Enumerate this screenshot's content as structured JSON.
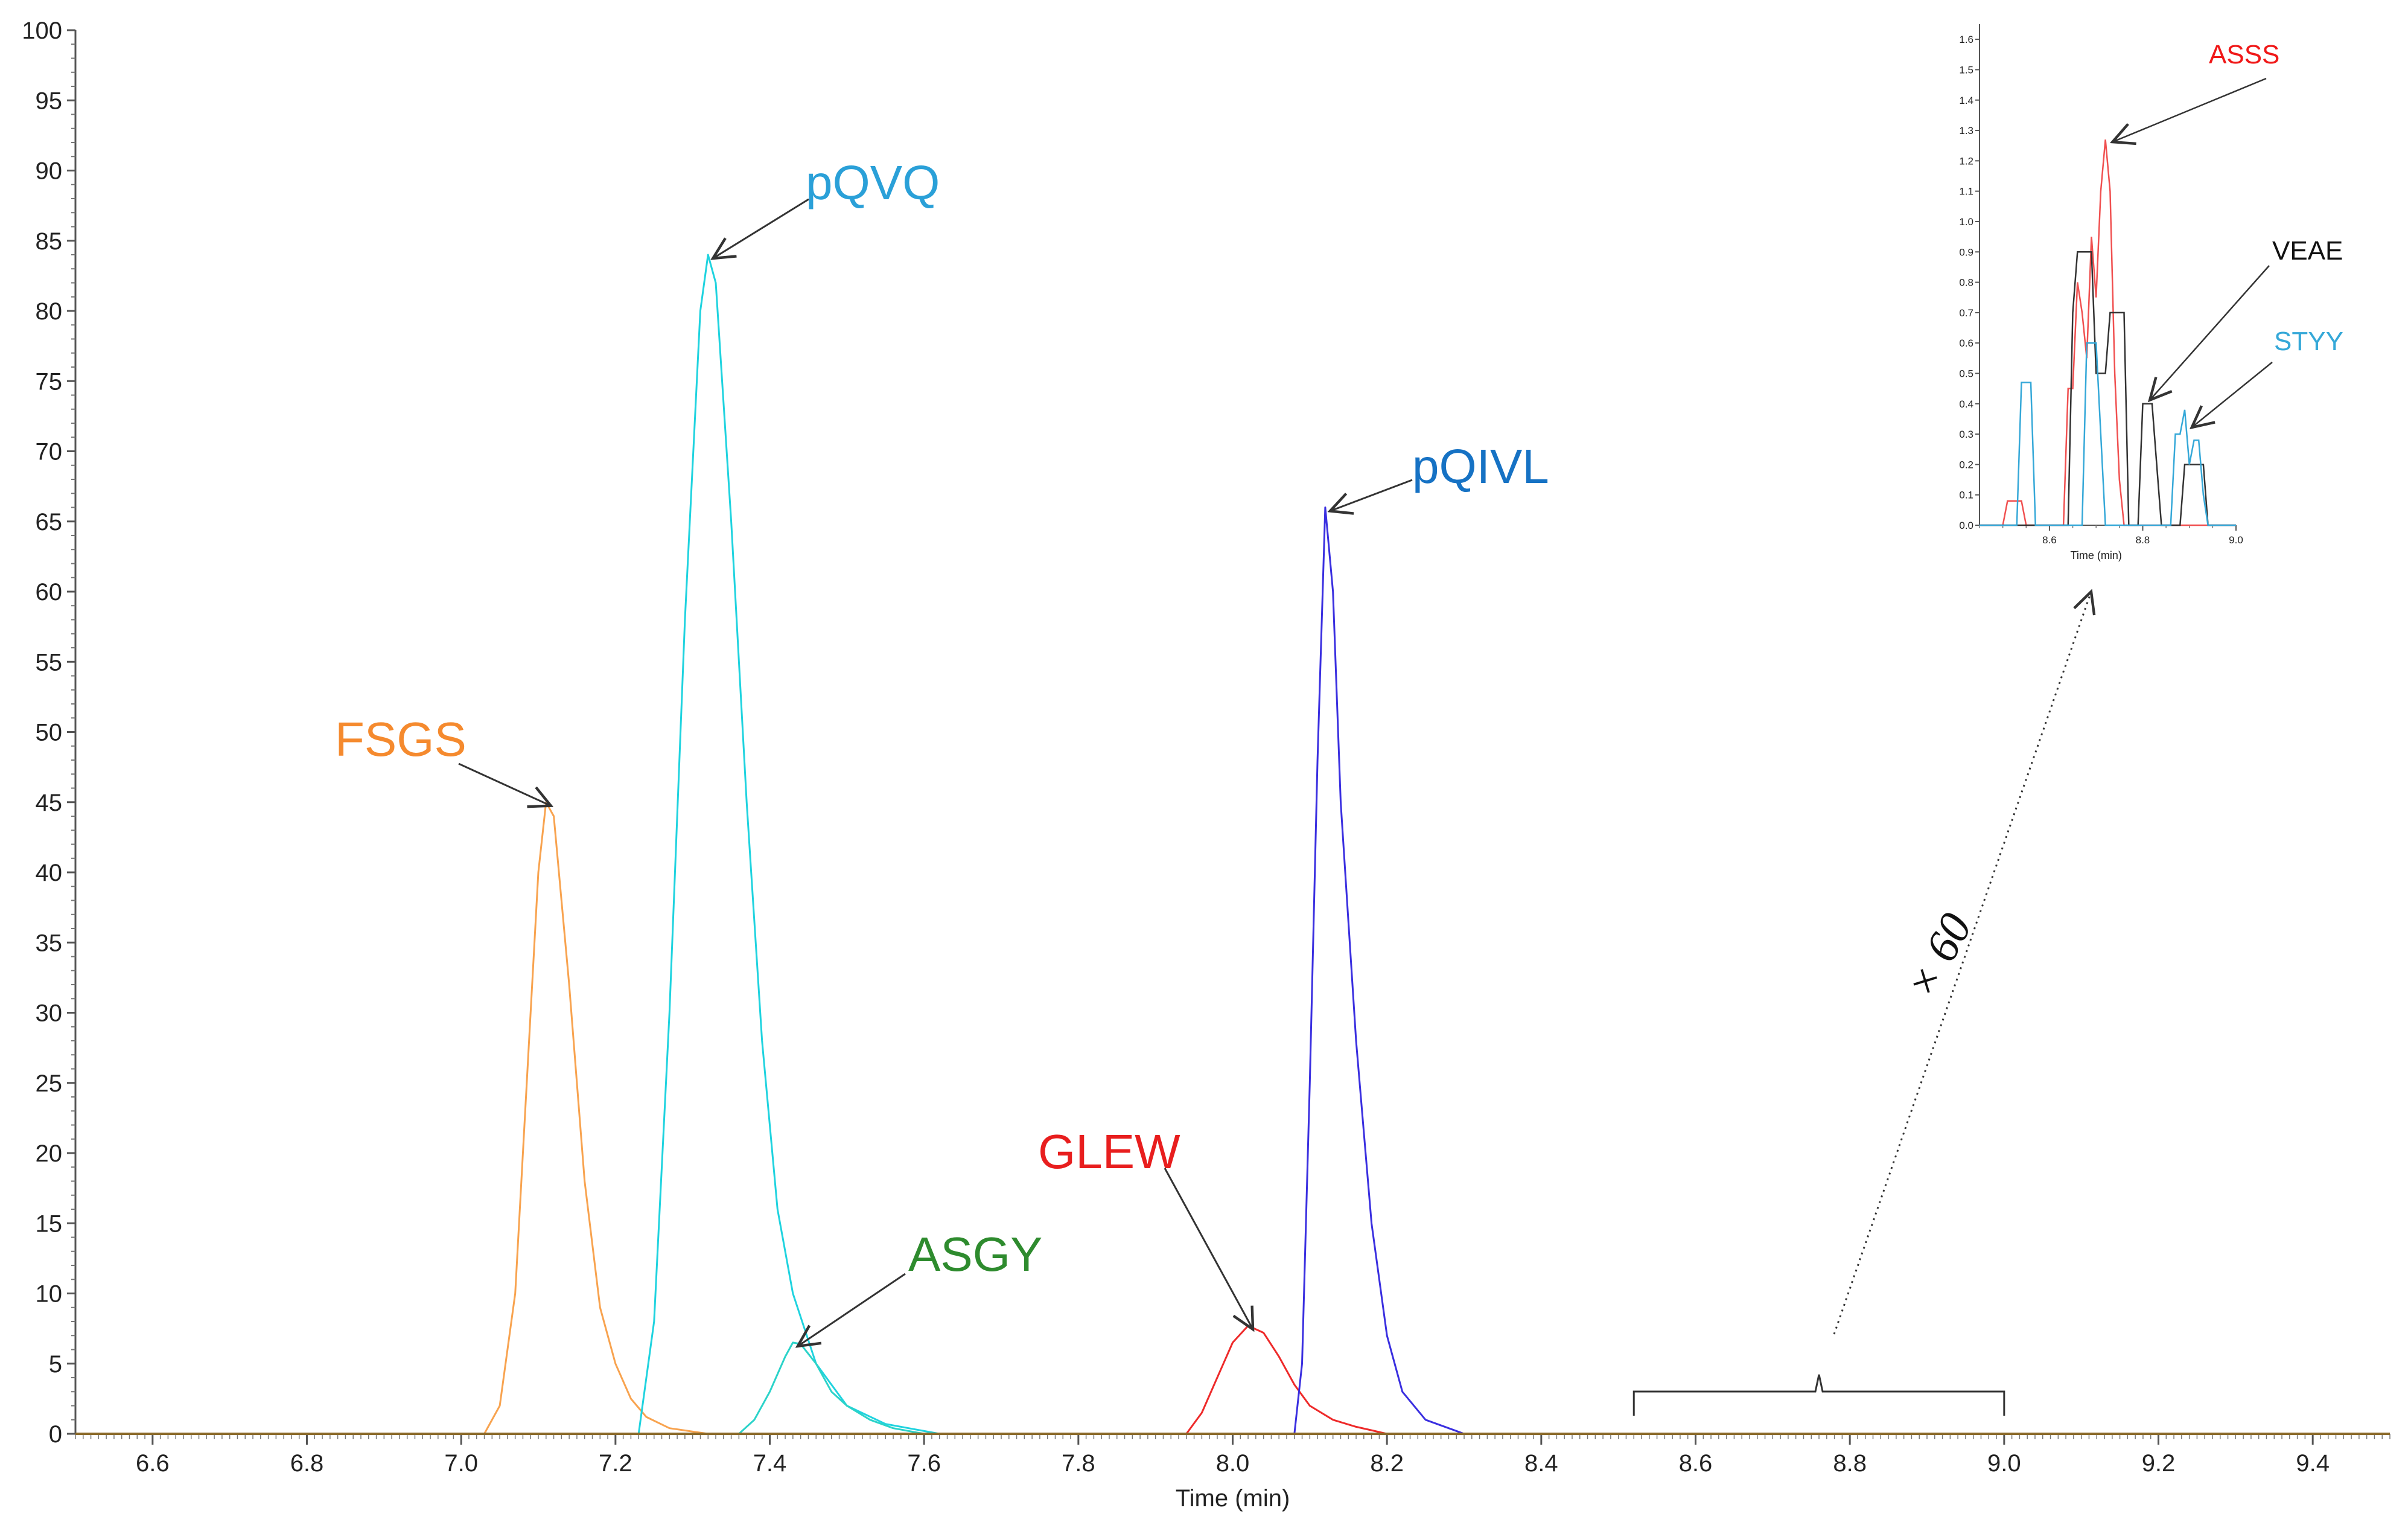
{
  "colors": {
    "FSGS": "#F8A34F",
    "pQVQ": "#1FD3DF",
    "ASGY": "#2BD3C9",
    "GLEW": "#EE2A2A",
    "pQIVL": "#3A2FE0",
    "baseline": "#8B6A2A",
    "inset_ASSS": "#F05050",
    "inset_VEAE": "#333333",
    "inset_STYY": "#35A8D8",
    "arrow": "#333333"
  },
  "chart_data": [
    {
      "type": "line",
      "xlabel": "Time (min)",
      "ylabel": "",
      "xlim": [
        6.5,
        9.5
      ],
      "ylim": [
        0,
        100
      ],
      "x_ticks": [
        "6.6",
        "6.8",
        "7.0",
        "7.2",
        "7.4",
        "7.6",
        "7.8",
        "8.0",
        "8.2",
        "8.4",
        "8.6",
        "8.8",
        "9.0",
        "9.2",
        "9.4"
      ],
      "y_ticks": [
        "0",
        "5",
        "10",
        "15",
        "20",
        "25",
        "30",
        "35",
        "40",
        "45",
        "50",
        "55",
        "60",
        "65",
        "70",
        "75",
        "80",
        "85",
        "90",
        "95",
        "100"
      ],
      "series": [
        {
          "name": "FSGS",
          "label_color": "#F58A2E",
          "points": [
            [
              7.03,
              0
            ],
            [
              7.05,
              2
            ],
            [
              7.07,
              10
            ],
            [
              7.09,
              30
            ],
            [
              7.1,
              40
            ],
            [
              7.11,
              45
            ],
            [
              7.12,
              44
            ],
            [
              7.14,
              32
            ],
            [
              7.16,
              18
            ],
            [
              7.18,
              9
            ],
            [
              7.2,
              5
            ],
            [
              7.22,
              2.5
            ],
            [
              7.24,
              1.2
            ],
            [
              7.27,
              0.4
            ],
            [
              7.32,
              0
            ]
          ]
        },
        {
          "name": "pQVQ",
          "label_color": "#2AA0D8",
          "points": [
            [
              7.23,
              0
            ],
            [
              7.25,
              8
            ],
            [
              7.27,
              30
            ],
            [
              7.29,
              58
            ],
            [
              7.31,
              80
            ],
            [
              7.32,
              84
            ],
            [
              7.33,
              82
            ],
            [
              7.35,
              65
            ],
            [
              7.37,
              45
            ],
            [
              7.39,
              28
            ],
            [
              7.41,
              16
            ],
            [
              7.43,
              10
            ],
            [
              7.46,
              5
            ],
            [
              7.5,
              2
            ],
            [
              7.55,
              0.7
            ],
            [
              7.62,
              0
            ]
          ]
        },
        {
          "name": "ASGY",
          "label_color": "#2E8B2E",
          "points": [
            [
              7.36,
              0
            ],
            [
              7.38,
              1
            ],
            [
              7.4,
              3
            ],
            [
              7.42,
              5.5
            ],
            [
              7.43,
              6.5
            ],
            [
              7.44,
              6.4
            ],
            [
              7.46,
              5
            ],
            [
              7.48,
              3
            ],
            [
              7.5,
              2
            ],
            [
              7.53,
              1
            ],
            [
              7.56,
              0.4
            ],
            [
              7.6,
              0
            ]
          ]
        },
        {
          "name": "GLEW",
          "label_color": "#E81E1E",
          "points": [
            [
              7.94,
              0
            ],
            [
              7.96,
              1.5
            ],
            [
              7.98,
              4
            ],
            [
              8.0,
              6.5
            ],
            [
              8.02,
              7.7
            ],
            [
              8.04,
              7.2
            ],
            [
              8.06,
              5.5
            ],
            [
              8.08,
              3.5
            ],
            [
              8.1,
              2
            ],
            [
              8.13,
              1
            ],
            [
              8.16,
              0.5
            ],
            [
              8.2,
              0
            ]
          ]
        },
        {
          "name": "pQIVL",
          "label_color": "#1672C4",
          "points": [
            [
              8.08,
              0
            ],
            [
              8.09,
              5
            ],
            [
              8.1,
              25
            ],
            [
              8.11,
              48
            ],
            [
              8.12,
              66
            ],
            [
              8.13,
              60
            ],
            [
              8.14,
              45
            ],
            [
              8.16,
              28
            ],
            [
              8.18,
              15
            ],
            [
              8.2,
              7
            ],
            [
              8.22,
              3
            ],
            [
              8.25,
              1
            ],
            [
              8.3,
              0
            ]
          ]
        },
        {
          "name": "",
          "points": [
            [
              6.5,
              0
            ],
            [
              9.5,
              0
            ]
          ]
        }
      ],
      "annotations": [
        {
          "text": "FSGS",
          "color": "#F58A2E",
          "points_to": [
            7.11,
            45
          ]
        },
        {
          "text": "pQVQ",
          "color": "#2AA0D8",
          "points_to": [
            7.32,
            84
          ]
        },
        {
          "text": "ASGY",
          "color": "#2E8B2E",
          "points_to": [
            7.43,
            6.5
          ]
        },
        {
          "text": "GLEW",
          "color": "#E81E1E",
          "points_to": [
            8.02,
            7.7
          ]
        },
        {
          "text": "pQIVL",
          "color": "#1672C4",
          "points_to": [
            8.12,
            66
          ]
        }
      ],
      "bracket_range": [
        8.52,
        9.0
      ],
      "magnification": "× 60"
    },
    {
      "type": "line",
      "xlabel": "Time (min)",
      "ylabel": "",
      "xlim": [
        8.45,
        9.0
      ],
      "ylim": [
        0,
        1.65
      ],
      "x_ticks": [
        "8.6",
        "8.8",
        "9.0"
      ],
      "y_ticks": [
        "0.0",
        "0.1",
        "0.2",
        "0.3",
        "0.4",
        "0.5",
        "0.6",
        "0.7",
        "0.8",
        "0.9",
        "1.0",
        "1.1",
        "1.2",
        "1.3",
        "1.4",
        "1.5",
        "1.6"
      ],
      "series": [
        {
          "name": "ASSS",
          "label_color": "#F01818",
          "points": [
            [
              8.45,
              0
            ],
            [
              8.5,
              0
            ],
            [
              8.51,
              0.08
            ],
            [
              8.54,
              0.08
            ],
            [
              8.55,
              0
            ],
            [
              8.63,
              0
            ],
            [
              8.64,
              0.45
            ],
            [
              8.65,
              0.45
            ],
            [
              8.66,
              0.8
            ],
            [
              8.67,
              0.7
            ],
            [
              8.68,
              0.55
            ],
            [
              8.69,
              0.95
            ],
            [
              8.7,
              0.75
            ],
            [
              8.71,
              1.1
            ],
            [
              8.72,
              1.27
            ],
            [
              8.73,
              1.1
            ],
            [
              8.74,
              0.5
            ],
            [
              8.75,
              0.15
            ],
            [
              8.76,
              0
            ],
            [
              9.0,
              0
            ]
          ]
        },
        {
          "name": "VEAE",
          "label_color": "#111111",
          "points": [
            [
              8.45,
              0
            ],
            [
              8.64,
              0
            ],
            [
              8.65,
              0.7
            ],
            [
              8.66,
              0.9
            ],
            [
              8.69,
              0.9
            ],
            [
              8.7,
              0.5
            ],
            [
              8.72,
              0.5
            ],
            [
              8.73,
              0.7
            ],
            [
              8.76,
              0.7
            ],
            [
              8.77,
              0
            ],
            [
              8.79,
              0
            ],
            [
              8.8,
              0.4
            ],
            [
              8.82,
              0.4
            ],
            [
              8.83,
              0.2
            ],
            [
              8.84,
              0
            ],
            [
              8.88,
              0
            ],
            [
              8.89,
              0.2
            ],
            [
              8.93,
              0.2
            ],
            [
              8.94,
              0
            ],
            [
              9.0,
              0
            ]
          ]
        },
        {
          "name": "STYY",
          "label_color": "#35A8D8",
          "points": [
            [
              8.45,
              0
            ],
            [
              8.53,
              0
            ],
            [
              8.54,
              0.47
            ],
            [
              8.56,
              0.47
            ],
            [
              8.57,
              0
            ],
            [
              8.67,
              0
            ],
            [
              8.68,
              0.6
            ],
            [
              8.7,
              0.6
            ],
            [
              8.71,
              0.3
            ],
            [
              8.72,
              0
            ],
            [
              8.86,
              0
            ],
            [
              8.87,
              0.3
            ],
            [
              8.88,
              0.3
            ],
            [
              8.89,
              0.38
            ],
            [
              8.9,
              0.2
            ],
            [
              8.91,
              0.28
            ],
            [
              8.92,
              0.28
            ],
            [
              8.93,
              0.1
            ],
            [
              8.94,
              0
            ],
            [
              9.0,
              0
            ]
          ]
        }
      ],
      "annotations": [
        {
          "text": "ASSS",
          "color": "#F01818",
          "points_to": [
            8.73,
            1.27
          ]
        },
        {
          "text": "VEAE",
          "color": "#111111",
          "points_to": [
            8.81,
            0.42
          ]
        },
        {
          "text": "STYY",
          "color": "#35A8D8",
          "points_to": [
            8.9,
            0.33
          ]
        }
      ]
    }
  ]
}
